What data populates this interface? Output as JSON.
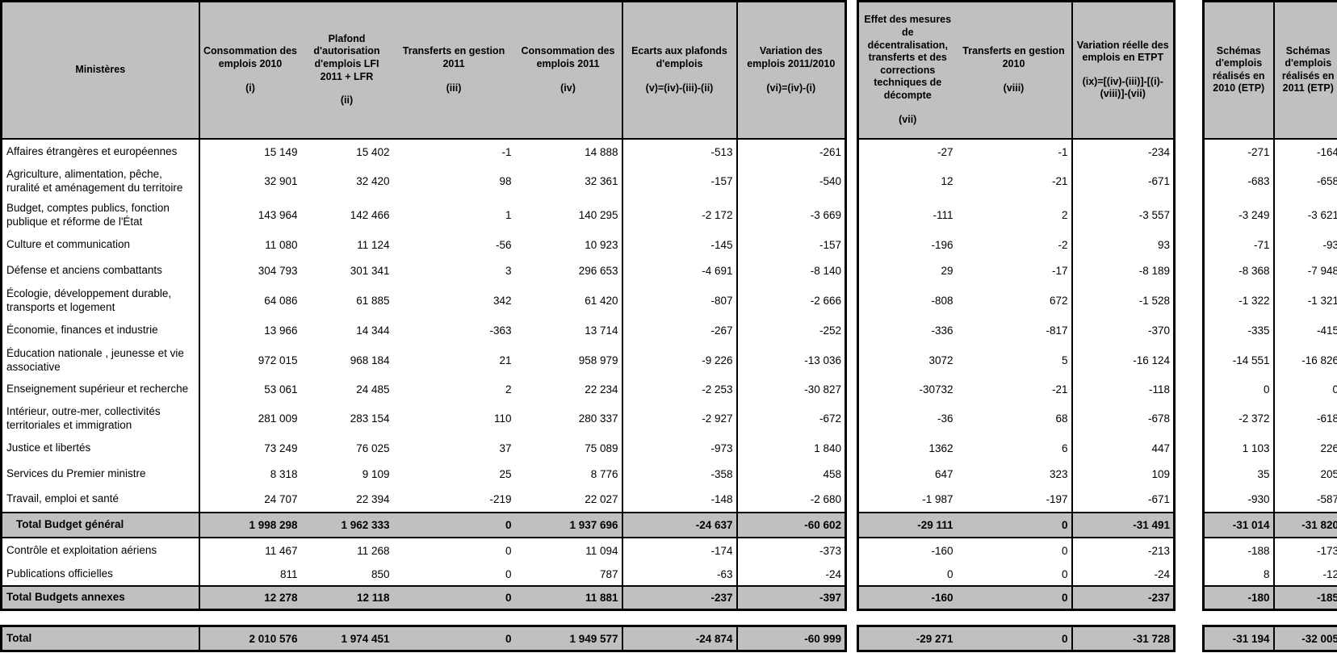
{
  "colors": {
    "header_bg": "#c0c0c0",
    "total_row_bg": "#c0c0c0",
    "border": "#000000",
    "background": "#ffffff"
  },
  "table": {
    "columns": [
      {
        "id": "ministry",
        "label": "Ministères"
      },
      {
        "id": "i",
        "label": "Consommation des emplois 2010",
        "formula": "(i)"
      },
      {
        "id": "ii",
        "label": "Plafond d'autorisation d'emplois LFI 2011 + LFR",
        "formula": "(ii)"
      },
      {
        "id": "iii",
        "label": "Transferts en gestion 2011",
        "formula": "(iii)"
      },
      {
        "id": "iv",
        "label": "Consommation des emplois 2011",
        "formula": "(iv)"
      },
      {
        "id": "v",
        "label": "Ecarts aux plafonds d'emplois",
        "formula": "(v)=(iv)-(iii)-(ii)"
      },
      {
        "id": "vi",
        "label": "Variation des emplois 2011/2010",
        "formula": "(vi)=(iv)-(i)"
      },
      {
        "id": "vii",
        "label": "Effet des mesures de décentralisation, transferts et des corrections techniques de décompte",
        "formula": "(vii)"
      },
      {
        "id": "viii",
        "label": "Transferts en gestion 2010",
        "formula": "(viii)"
      },
      {
        "id": "ix",
        "label": "Variation réelle des emplois en ETPT",
        "formula": "(ix)=[(iv)-(iii)]-[(i)-(viii)]-(vii)"
      },
      {
        "id": "etp2010",
        "label": "Schémas d'emplois réalisés en 2010 (ETP)"
      },
      {
        "id": "etp2011",
        "label": "Schémas d'emplois réalisés en 2011 (ETP)"
      }
    ],
    "rows": [
      {
        "ministry": "Affaires étrangères et européennes",
        "values": [
          "15 149",
          "15 402",
          "-1",
          "14 888",
          "-513",
          "-261",
          "-27",
          "-1",
          "-234",
          "-271",
          "-164"
        ]
      },
      {
        "ministry": "Agriculture, alimentation, pêche, ruralité et aménagement du territoire",
        "values": [
          "32 901",
          "32 420",
          "98",
          "32 361",
          "-157",
          "-540",
          "12",
          "-21",
          "-671",
          "-683",
          "-658"
        ]
      },
      {
        "ministry": "Budget, comptes publics, fonction publique et réforme de l'État",
        "values": [
          "143 964",
          "142 466",
          "1",
          "140 295",
          "-2 172",
          "-3 669",
          "-111",
          "2",
          "-3 557",
          "-3 249",
          "-3 621"
        ]
      },
      {
        "ministry": "Culture et communication",
        "values": [
          "11 080",
          "11 124",
          "-56",
          "10 923",
          "-145",
          "-157",
          "-196",
          "-2",
          "93",
          "-71",
          "-93"
        ]
      },
      {
        "ministry": "Défense et anciens combattants",
        "values": [
          "304 793",
          "301 341",
          "3",
          "296 653",
          "-4 691",
          "-8 140",
          "29",
          "-17",
          "-8 189",
          "-8 368",
          "-7 948"
        ]
      },
      {
        "ministry": "Écologie, développement durable, transports et logement",
        "values": [
          "64 086",
          "61 885",
          "342",
          "61 420",
          "-807",
          "-2 666",
          "-808",
          "672",
          "-1 528",
          "-1 322",
          "-1 321"
        ]
      },
      {
        "ministry": "Économie, finances et industrie",
        "values": [
          "13 966",
          "14 344",
          "-363",
          "13 714",
          "-267",
          "-252",
          "-336",
          "-817",
          "-370",
          "-335",
          "-415"
        ]
      },
      {
        "ministry": "Éducation nationale , jeunesse et vie associative",
        "values": [
          "972 015",
          "968 184",
          "21",
          "958 979",
          "-9 226",
          "-13 036",
          "3072",
          "5",
          "-16 124",
          "-14 551",
          "-16 826"
        ]
      },
      {
        "ministry": "Enseignement supérieur et recherche",
        "values": [
          "53 061",
          "24 485",
          "2",
          "22 234",
          "-2 253",
          "-30 827",
          "-30732",
          "-21",
          "-118",
          "0",
          "0"
        ]
      },
      {
        "ministry": "Intérieur, outre-mer, collectivités territoriales et immigration",
        "values": [
          "281 009",
          "283 154",
          "110",
          "280 337",
          "-2 927",
          "-672",
          "-36",
          "68",
          "-678",
          "-2 372",
          "-618"
        ]
      },
      {
        "ministry": "Justice et libertés",
        "values": [
          "73 249",
          "76 025",
          "37",
          "75 089",
          "-973",
          "1 840",
          "1362",
          "6",
          "447",
          "1 103",
          "226"
        ]
      },
      {
        "ministry": "Services du Premier ministre",
        "values": [
          "8 318",
          "9 109",
          "25",
          "8 776",
          "-358",
          "458",
          "647",
          "323",
          "109",
          "35",
          "205"
        ]
      },
      {
        "ministry": "Travail, emploi et santé",
        "values": [
          "24 707",
          "22 394",
          "-219",
          "22 027",
          "-148",
          "-2 680",
          "-1 987",
          "-197",
          "-671",
          "-930",
          "-587"
        ]
      }
    ],
    "total_budget_general": {
      "label": "Total Budget général",
      "values": [
        "1 998 298",
        "1 962 333",
        "0",
        "1 937 696",
        "-24 637",
        "-60 602",
        "-29 111",
        "0",
        "-31 491",
        "-31 014",
        "-31 820"
      ]
    },
    "annex_rows": [
      {
        "ministry": "Contrôle et exploitation aériens",
        "values": [
          "11 467",
          "11 268",
          "0",
          "11 094",
          "-174",
          "-373",
          "-160",
          "0",
          "-213",
          "-188",
          "-173"
        ]
      },
      {
        "ministry": "Publications officielles",
        "values": [
          "811",
          "850",
          "0",
          "787",
          "-63",
          "-24",
          "0",
          "0",
          "-24",
          "8",
          "-12"
        ]
      }
    ],
    "total_budgets_annexes": {
      "label": "Total Budgets annexes",
      "values": [
        "12 278",
        "12 118",
        "0",
        "11 881",
        "-237",
        "-397",
        "-160",
        "0",
        "-237",
        "-180",
        "-185"
      ]
    },
    "grand_total": {
      "label": "Total",
      "values": [
        "2 010 576",
        "1 974 451",
        "0",
        "1 949 577",
        "-24 874",
        "-60 999",
        "-29 271",
        "0",
        "-31 728",
        "-31 194",
        "-32 005"
      ]
    }
  }
}
